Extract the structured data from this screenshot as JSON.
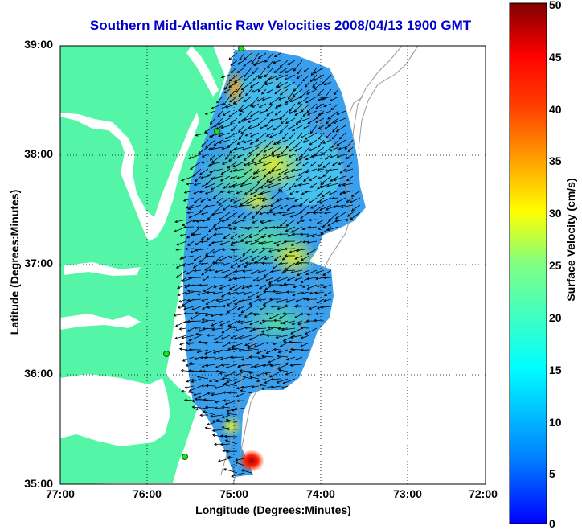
{
  "title": "Southern Mid-Atlantic Raw Velocities 2008/04/13 1900 GMT",
  "xlabel": "Longitude (Degrees:Minutes)",
  "ylabel": "Latitude (Degrees:Minutes)",
  "colorbar": {
    "label": "Surface Velocity (cm/s)",
    "min": 0,
    "max": 50,
    "ticks": [
      "50",
      "45",
      "40",
      "35",
      "30",
      "25",
      "20",
      "15",
      "10",
      "5",
      "0"
    ]
  },
  "x_ticks": [
    "77:00",
    "76:00",
    "75:00",
    "74:00",
    "73:00",
    "72:00"
  ],
  "y_ticks": [
    "39:00",
    "38:00",
    "37:00",
    "36:00",
    "35:00"
  ],
  "colors": {
    "land": "#55f5a8",
    "title": "#0000cc",
    "arrow": "#000000",
    "bathymetry": "#999999"
  }
}
